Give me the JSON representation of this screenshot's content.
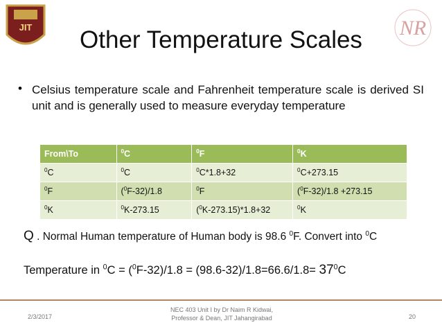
{
  "header": {
    "logo_text": "JIT",
    "monogram": "NR",
    "title": "Other Temperature Scales"
  },
  "bullet": "Celsius temperature scale  and Fahrenheit temperature scale is derived SI unit and is generally used to measure everyday temperature",
  "table": {
    "header": [
      [
        "From\\To"
      ],
      [
        {
          "sup": "0"
        },
        "C"
      ],
      [
        {
          "sup": "0"
        },
        "F"
      ],
      [
        {
          "sup": "0"
        },
        "K"
      ]
    ],
    "rows": [
      [
        [
          {
            "sup": "0"
          },
          "C"
        ],
        [
          {
            "sup": "0"
          },
          "C"
        ],
        [
          {
            "sup": "0"
          },
          "C*1.8+32"
        ],
        [
          {
            "sup": "0"
          },
          "C+273.15"
        ]
      ],
      [
        [
          {
            "sup": "0"
          },
          "F"
        ],
        [
          "(",
          {
            "sup": "0"
          },
          "F-32)/1.8"
        ],
        [
          {
            "sup": "0"
          },
          "F"
        ],
        [
          "(",
          {
            "sup": "0"
          },
          "F-32)/1.8 +273.15"
        ]
      ],
      [
        [
          {
            "sup": "0"
          },
          "K"
        ],
        [
          {
            "sup": "0"
          },
          "K-273.15"
        ],
        [
          "(",
          {
            "sup": "0"
          },
          "K-273.15)*1.8+32"
        ],
        [
          {
            "sup": "0"
          },
          "K"
        ]
      ]
    ]
  },
  "question": [
    "Q",
    " . Normal Human temperature of Human body is 98.6 ",
    {
      "sup": "0"
    },
    "F. Convert into ",
    {
      "sup": "0"
    },
    "C"
  ],
  "answer": [
    "Temperature in ",
    {
      "sup": "0"
    },
    "C = (",
    {
      "sup": "0"
    },
    "F-32)/1.8 = (98.6-32)/1.8=66.6/1.8= ",
    "37",
    {
      "sup": "0"
    },
    "C"
  ],
  "footer": {
    "date": "2/3/2017",
    "credit": [
      "NEC 403 Unit I by Dr Naim R Kidwai,",
      "Professor & Dean, JIT Jahangirabad"
    ],
    "page": "20"
  }
}
